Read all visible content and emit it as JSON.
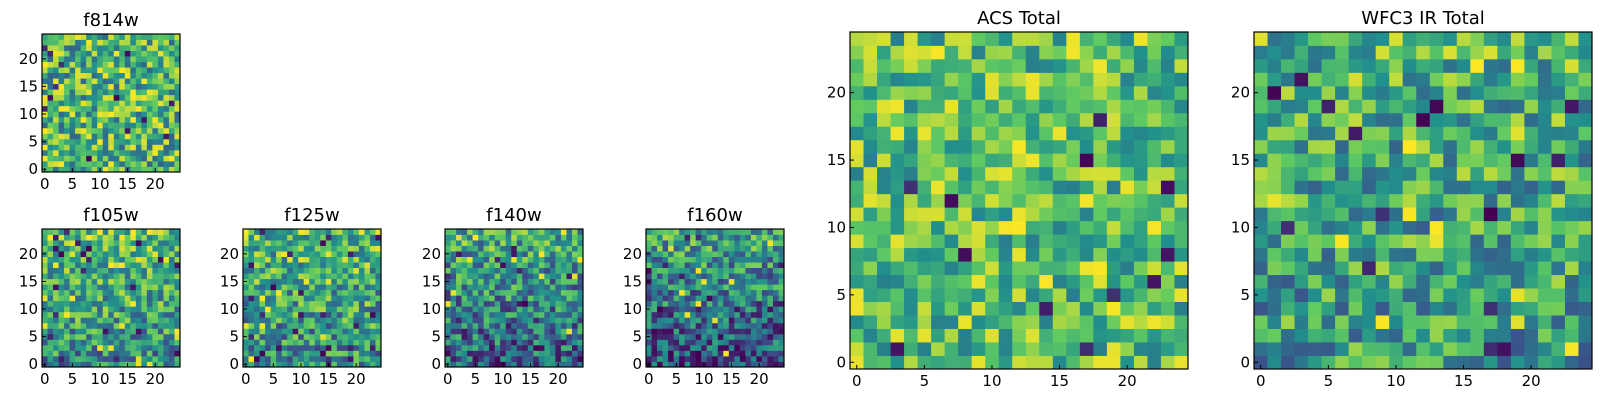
{
  "chart_data": [
    {
      "id": "p-f814w",
      "type": "heatmap",
      "title": "f814w",
      "grid_size": 25,
      "xlim": [
        0,
        24
      ],
      "ylim": [
        0,
        24
      ],
      "xticks": [
        "0",
        "5",
        "10",
        "15",
        "20"
      ],
      "yticks": [
        "0",
        "5",
        "10",
        "15",
        "20"
      ],
      "value_range": [
        0,
        1
      ],
      "pattern": {
        "seed": 11,
        "base": 0.66,
        "noise": 0.34,
        "trend": 0.0
      }
    },
    {
      "id": "p-f105w",
      "type": "heatmap",
      "title": "f105w",
      "grid_size": 25,
      "xlim": [
        0,
        24
      ],
      "ylim": [
        0,
        24
      ],
      "xticks": [
        "0",
        "5",
        "10",
        "15",
        "20"
      ],
      "yticks": [
        "0",
        "5",
        "10",
        "15",
        "20"
      ],
      "value_range": [
        0,
        1
      ],
      "pattern": {
        "seed": 23,
        "base": 0.6,
        "noise": 0.3,
        "trend": 0.25
      }
    },
    {
      "id": "p-f125w",
      "type": "heatmap",
      "title": "f125w",
      "grid_size": 25,
      "xlim": [
        0,
        24
      ],
      "ylim": [
        0,
        24
      ],
      "xticks": [
        "0",
        "5",
        "10",
        "15",
        "20"
      ],
      "yticks": [
        "0",
        "5",
        "10",
        "15",
        "20"
      ],
      "value_range": [
        0,
        1
      ],
      "pattern": {
        "seed": 37,
        "base": 0.58,
        "noise": 0.32,
        "trend": 0.2
      }
    },
    {
      "id": "p-f140w",
      "type": "heatmap",
      "title": "f140w",
      "grid_size": 25,
      "xlim": [
        0,
        24
      ],
      "ylim": [
        0,
        24
      ],
      "xticks": [
        "0",
        "5",
        "10",
        "15",
        "20"
      ],
      "yticks": [
        "0",
        "5",
        "10",
        "15",
        "20"
      ],
      "value_range": [
        0,
        1
      ],
      "pattern": {
        "seed": 41,
        "base": 0.46,
        "noise": 0.32,
        "trend": 0.3
      }
    },
    {
      "id": "p-f160w",
      "type": "heatmap",
      "title": "f160w",
      "grid_size": 25,
      "xlim": [
        0,
        24
      ],
      "ylim": [
        0,
        24
      ],
      "xticks": [
        "0",
        "5",
        "10",
        "15",
        "20"
      ],
      "yticks": [
        "0",
        "5",
        "10",
        "15",
        "20"
      ],
      "value_range": [
        0,
        1
      ],
      "pattern": {
        "seed": 53,
        "base": 0.42,
        "noise": 0.3,
        "trend": 0.35
      }
    },
    {
      "id": "p-acs",
      "type": "heatmap",
      "title": "ACS Total",
      "grid_size": 25,
      "xlim": [
        0,
        24
      ],
      "ylim": [
        0,
        24
      ],
      "xticks": [
        "0",
        "5",
        "10",
        "15",
        "20"
      ],
      "yticks": [
        "0",
        "5",
        "10",
        "15",
        "20"
      ],
      "value_range": [
        0,
        1
      ],
      "pattern": {
        "seed": 67,
        "base": 0.7,
        "noise": 0.28,
        "trend": 0.0
      }
    },
    {
      "id": "p-wfc3",
      "type": "heatmap",
      "title": "WFC3 IR Total",
      "grid_size": 25,
      "xlim": [
        0,
        24
      ],
      "ylim": [
        0,
        24
      ],
      "xticks": [
        "0",
        "5",
        "10",
        "15",
        "20"
      ],
      "yticks": [
        "0",
        "5",
        "10",
        "15",
        "20"
      ],
      "value_range": [
        0,
        1
      ],
      "pattern": {
        "seed": 79,
        "base": 0.6,
        "noise": 0.3,
        "trend": 0.12
      }
    }
  ],
  "colormap": [
    "#440154",
    "#3b528b",
    "#21918c",
    "#5ec962",
    "#fde725"
  ]
}
